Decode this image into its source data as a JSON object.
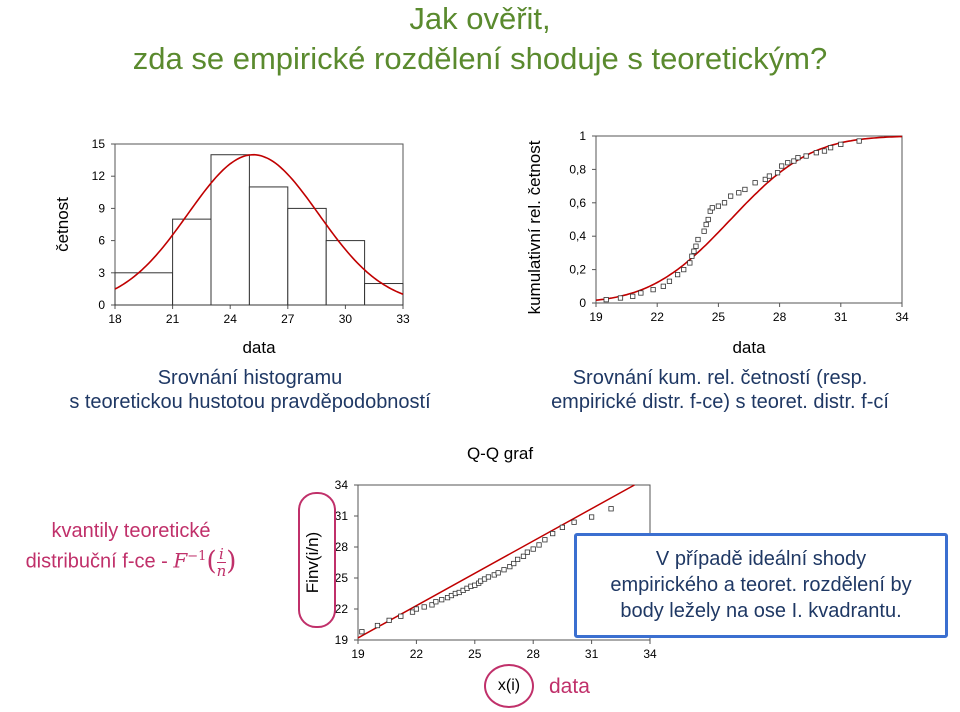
{
  "title": {
    "line1": "Jak ověřit,",
    "line2": "zda se empirické rozdělení shoduje s teoretickým?"
  },
  "captions": {
    "hist_line1": "Srovnání histogramu",
    "hist_line2": "s teoretickou hustotou pravděpodobností",
    "cdf_line1": "Srovnání kum. rel. četností (resp.",
    "cdf_line2": "empirické distr. f-ce) s teoret. distr. f-cí"
  },
  "quantile_label": {
    "line1": "kvantily teoretické",
    "line2": "distribuční f-ce - ",
    "formula_F": "F",
    "formula_exp": "−1",
    "formula_i": "i",
    "formula_n": "n"
  },
  "qq": {
    "title": "Q-Q graf",
    "xi_label": "x(i)",
    "data_label": "data"
  },
  "callout": {
    "line1": "V případě ideální shody",
    "line2": "empirického a teoret. rozdělení by",
    "line3": "body ležely na ose I. kvadrantu."
  },
  "colors": {
    "title": "#5a8a2e",
    "caption": "#1f3864",
    "curve": "#c00000",
    "accent": "#c0306a",
    "callout_border": "#3b6fd0"
  },
  "chart_data": [
    {
      "type": "bar",
      "xlabel": "data",
      "ylabel": "četnost",
      "xlim": [
        18,
        33
      ],
      "ylim": [
        0,
        15
      ],
      "xticks": [
        18,
        21,
        24,
        27,
        30,
        33
      ],
      "yticks": [
        0,
        3,
        6,
        9,
        12,
        15
      ],
      "bins": [
        [
          18,
          21
        ],
        [
          21,
          23
        ],
        [
          23,
          25
        ],
        [
          25,
          27
        ],
        [
          27,
          29
        ],
        [
          29,
          31
        ],
        [
          31,
          33
        ]
      ],
      "values": [
        3,
        8,
        14,
        11,
        9,
        6,
        2
      ],
      "density_curve": {
        "mean": 25.2,
        "sd": 3.4,
        "peak": 14
      }
    },
    {
      "type": "scatter",
      "xlabel": "data",
      "ylabel": "kumulativní rel. četnost",
      "xlim": [
        19,
        34
      ],
      "ylim": [
        0,
        1
      ],
      "xticks": [
        19,
        22,
        25,
        28,
        31,
        34
      ],
      "yticks": [
        "0",
        "0,2",
        "0,4",
        "0,6",
        "0,8",
        "1"
      ],
      "points": [
        [
          19.5,
          0.02
        ],
        [
          20.2,
          0.03
        ],
        [
          20.8,
          0.04
        ],
        [
          21.2,
          0.06
        ],
        [
          21.8,
          0.08
        ],
        [
          22.3,
          0.1
        ],
        [
          22.6,
          0.13
        ],
        [
          23.0,
          0.17
        ],
        [
          23.3,
          0.2
        ],
        [
          23.6,
          0.24
        ],
        [
          23.7,
          0.28
        ],
        [
          23.8,
          0.31
        ],
        [
          23.9,
          0.34
        ],
        [
          24.0,
          0.38
        ],
        [
          24.3,
          0.43
        ],
        [
          24.4,
          0.47
        ],
        [
          24.5,
          0.5
        ],
        [
          24.6,
          0.55
        ],
        [
          24.7,
          0.57
        ],
        [
          25.0,
          0.58
        ],
        [
          25.3,
          0.6
        ],
        [
          25.6,
          0.64
        ],
        [
          26.0,
          0.66
        ],
        [
          26.3,
          0.68
        ],
        [
          26.8,
          0.72
        ],
        [
          27.3,
          0.74
        ],
        [
          27.5,
          0.76
        ],
        [
          27.9,
          0.78
        ],
        [
          28.1,
          0.82
        ],
        [
          28.4,
          0.84
        ],
        [
          28.7,
          0.85
        ],
        [
          28.9,
          0.87
        ],
        [
          29.3,
          0.88
        ],
        [
          29.8,
          0.9
        ],
        [
          30.2,
          0.91
        ],
        [
          30.5,
          0.93
        ],
        [
          31.0,
          0.95
        ],
        [
          31.9,
          0.97
        ]
      ],
      "cdf_curve": {
        "mean": 25.6,
        "sd": 3.1
      }
    },
    {
      "type": "scatter",
      "title": "Q-Q graf",
      "xlabel": "x(i)",
      "ylabel": "Finv(i/n)",
      "xlim": [
        19,
        34
      ],
      "ylim": [
        19,
        34
      ],
      "xticks": [
        19,
        22,
        25,
        28,
        31,
        34
      ],
      "yticks": [
        19,
        22,
        25,
        28,
        31,
        34
      ],
      "points": [
        [
          19.2,
          19.8
        ],
        [
          20.0,
          20.4
        ],
        [
          20.6,
          20.9
        ],
        [
          21.2,
          21.3
        ],
        [
          21.8,
          21.7
        ],
        [
          22.0,
          22.0
        ],
        [
          22.4,
          22.2
        ],
        [
          22.8,
          22.4
        ],
        [
          23.0,
          22.7
        ],
        [
          23.3,
          22.9
        ],
        [
          23.6,
          23.1
        ],
        [
          23.8,
          23.3
        ],
        [
          24.0,
          23.5
        ],
        [
          24.2,
          23.6
        ],
        [
          24.4,
          23.8
        ],
        [
          24.6,
          24.0
        ],
        [
          24.8,
          24.2
        ],
        [
          25.0,
          24.3
        ],
        [
          25.2,
          24.5
        ],
        [
          25.3,
          24.7
        ],
        [
          25.5,
          24.9
        ],
        [
          25.7,
          25.1
        ],
        [
          26.0,
          25.3
        ],
        [
          26.2,
          25.5
        ],
        [
          26.5,
          25.8
        ],
        [
          26.8,
          26.1
        ],
        [
          27.0,
          26.4
        ],
        [
          27.2,
          26.8
        ],
        [
          27.5,
          27.1
        ],
        [
          27.7,
          27.5
        ],
        [
          28.0,
          27.8
        ],
        [
          28.3,
          28.2
        ],
        [
          28.6,
          28.7
        ],
        [
          29.0,
          29.3
        ],
        [
          29.5,
          29.9
        ],
        [
          30.1,
          30.4
        ],
        [
          31.0,
          30.9
        ],
        [
          32.0,
          31.7
        ]
      ]
    }
  ]
}
